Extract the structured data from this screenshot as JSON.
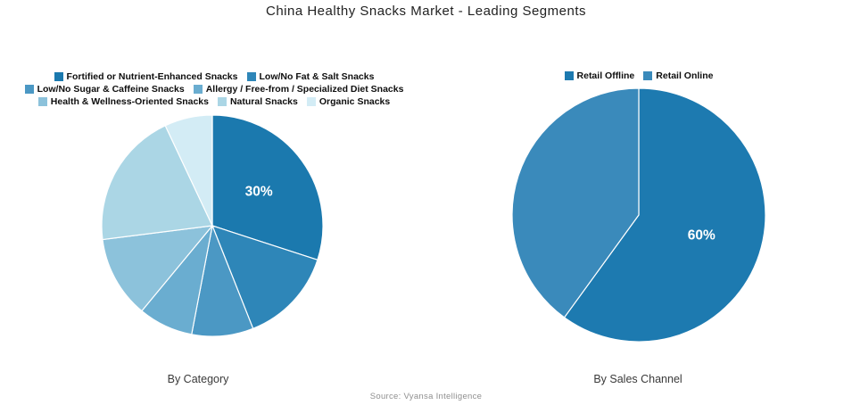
{
  "title": "China Healthy Snacks Market - Leading Segments",
  "source_note": "Source: Vyansa Intelligence",
  "colors": {
    "background": "#ffffff",
    "title_text": "#222222",
    "axis_title_text": "#3a3a3a",
    "source_text": "#8f8f8f",
    "slice_divider": "#ffffff"
  },
  "chart_data": [
    {
      "type": "pie",
      "title": "By Category",
      "labels": [
        "Fortified or Nutrient-Enhanced Snacks",
        "Low/No Fat & Salt Snacks",
        "Low/No Sugar & Caffeine Snacks",
        "Allergy / Free-from / Specialized Diet Snacks",
        "Health & Wellness-Oriented Snacks",
        "Natural Snacks",
        "Organic Snacks"
      ],
      "values": [
        30,
        14,
        9,
        8,
        12,
        20,
        7
      ],
      "colors": [
        "#1b79ae",
        "#2e86b8",
        "#4b98c4",
        "#6aadd0",
        "#8cc2db",
        "#abd6e5",
        "#d3ecf5"
      ],
      "slice_labels": [
        "30%",
        "",
        "",
        "",
        "",
        "",
        ""
      ],
      "label_color": "#ffffff",
      "start_angle_deg": 0,
      "direction": "clockwise",
      "legend_position": "top",
      "legend_rows": [
        [
          0,
          1
        ],
        [
          2,
          3
        ],
        [
          4,
          5,
          6
        ]
      ]
    },
    {
      "type": "pie",
      "title": "By Sales Channel",
      "labels": [
        "Retail Offline",
        "Retail Online"
      ],
      "values": [
        60,
        40
      ],
      "colors": [
        "#1d7ab0",
        "#3a8abb"
      ],
      "slice_labels": [
        "60%",
        ""
      ],
      "label_color": "#ffffff",
      "start_angle_deg": 0,
      "direction": "clockwise",
      "legend_position": "top",
      "legend_rows": [
        [
          0,
          1
        ]
      ]
    }
  ]
}
